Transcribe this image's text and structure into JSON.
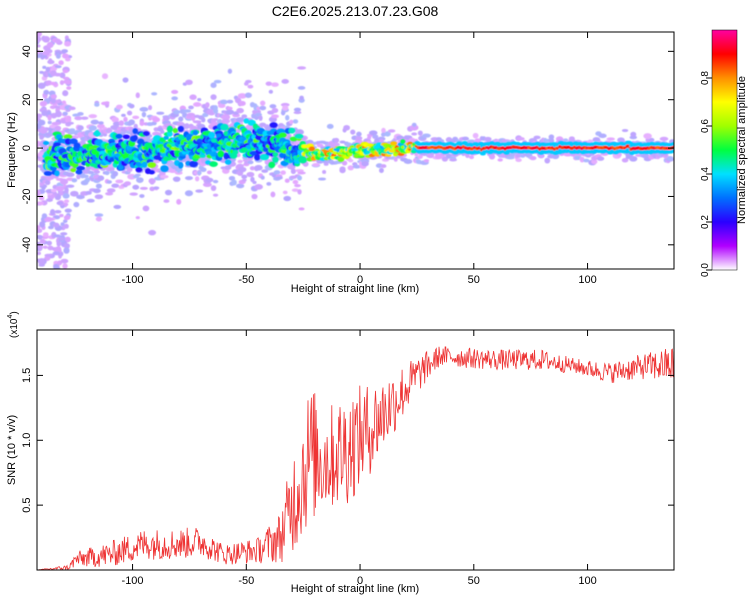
{
  "chart_data": [
    {
      "type": "heatmap",
      "title": "C2E6.2025.213.07.23.G08",
      "xlabel": "Height of straight line (km)",
      "ylabel": "Frequency (Hz)",
      "xlim": [
        -142,
        138
      ],
      "ylim": [
        -50,
        48
      ],
      "xticks": [
        -100,
        -50,
        0,
        50,
        100
      ],
      "yticks": [
        40,
        20,
        0,
        -20,
        -40
      ],
      "colorbar": {
        "label": "Normalized spectral amplitude",
        "range": [
          0,
          1
        ],
        "ticks": [
          "0.0",
          "0.2",
          "0.4",
          "0.6",
          "0.8"
        ],
        "tick_values": [
          0.0,
          0.2,
          0.4,
          0.6,
          0.8
        ],
        "colors": [
          "#ffffff",
          "#b000ff",
          "#2a00ff",
          "#0070ff",
          "#00e0ff",
          "#00ff40",
          "#a0ff00",
          "#ffff00",
          "#ff9000",
          "#ff0000",
          "#ff00a0"
        ]
      },
      "ridge": [
        {
          "x": -140,
          "f": -4
        },
        {
          "x": -120,
          "f": -3
        },
        {
          "x": -100,
          "f": -2
        },
        {
          "x": -80,
          "f": 0
        },
        {
          "x": -60,
          "f": 2
        },
        {
          "x": -45,
          "f": 3
        },
        {
          "x": -30,
          "f": 0
        },
        {
          "x": -20,
          "f": -3
        },
        {
          "x": -10,
          "f": -2
        },
        {
          "x": 0,
          "f": -1
        },
        {
          "x": 20,
          "f": 0
        },
        {
          "x": 50,
          "f": 0
        },
        {
          "x": 100,
          "f": 0
        },
        {
          "x": 138,
          "f": 0
        }
      ]
    },
    {
      "type": "line",
      "xlabel": "Height of straight line (km)",
      "ylabel": "SNR (10 * v/v)",
      "exponent_label": "(x10",
      "exponent_power": "4",
      "exponent_close": ")",
      "xlim": [
        -142,
        138
      ],
      "ylim": [
        0,
        1.85
      ],
      "xticks": [
        -100,
        -50,
        0,
        50,
        100
      ],
      "yticks": [
        "0.5",
        "1.0",
        "1.5"
      ],
      "ytick_values": [
        0.5,
        1.0,
        1.5
      ],
      "series": [
        {
          "color": "#ee3333",
          "envelope": [
            {
              "x": -142,
              "mean": 0.0,
              "noise": 0.0
            },
            {
              "x": -128,
              "mean": 0.02,
              "noise": 0.02
            },
            {
              "x": -125,
              "mean": 0.08,
              "noise": 0.06
            },
            {
              "x": -110,
              "mean": 0.12,
              "noise": 0.1
            },
            {
              "x": -95,
              "mean": 0.2,
              "noise": 0.12
            },
            {
              "x": -80,
              "mean": 0.2,
              "noise": 0.12
            },
            {
              "x": -70,
              "mean": 0.22,
              "noise": 0.12
            },
            {
              "x": -60,
              "mean": 0.12,
              "noise": 0.08
            },
            {
              "x": -45,
              "mean": 0.15,
              "noise": 0.1
            },
            {
              "x": -35,
              "mean": 0.25,
              "noise": 0.2
            },
            {
              "x": -28,
              "mean": 0.6,
              "noise": 0.45
            },
            {
              "x": -22,
              "mean": 0.9,
              "noise": 0.55
            },
            {
              "x": -15,
              "mean": 0.85,
              "noise": 0.4
            },
            {
              "x": -5,
              "mean": 0.95,
              "noise": 0.45
            },
            {
              "x": 5,
              "mean": 1.1,
              "noise": 0.35
            },
            {
              "x": 15,
              "mean": 1.3,
              "noise": 0.25
            },
            {
              "x": 25,
              "mean": 1.5,
              "noise": 0.15
            },
            {
              "x": 35,
              "mean": 1.65,
              "noise": 0.08
            },
            {
              "x": 60,
              "mean": 1.62,
              "noise": 0.08
            },
            {
              "x": 80,
              "mean": 1.62,
              "noise": 0.08
            },
            {
              "x": 95,
              "mean": 1.57,
              "noise": 0.06
            },
            {
              "x": 110,
              "mean": 1.52,
              "noise": 0.08
            },
            {
              "x": 125,
              "mean": 1.57,
              "noise": 0.1
            },
            {
              "x": 138,
              "mean": 1.58,
              "noise": 0.15
            }
          ]
        }
      ]
    }
  ]
}
